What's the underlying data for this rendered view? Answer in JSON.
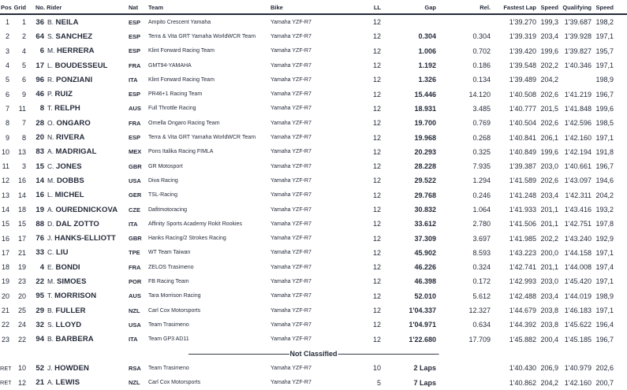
{
  "results": {
    "header": {
      "pos": "Pos",
      "grid": "Grid",
      "no_rider": "No. Rider",
      "nat": "Nat",
      "team": "Team",
      "bike": "Bike",
      "ll": "LL",
      "gap": "Gap",
      "rel": "Rel.",
      "fastest_lap": "Fastest Lap",
      "speed": "Speed",
      "qualifying": "Qualifying",
      "speed2": "Speed"
    },
    "rows": [
      {
        "pos": "1",
        "grid": "1",
        "no": "36",
        "initial": "B.",
        "name": "NEILA",
        "nat": "ESP",
        "team": "Ampito Crescent Yamaha",
        "bike": "Yamaha YZF-R7",
        "ll": "12",
        "gap": "",
        "rel": "",
        "fl": "1'39.270",
        "spd": "199,3",
        "qual": "1'39.687",
        "qspd": "198,2"
      },
      {
        "pos": "2",
        "grid": "2",
        "no": "64",
        "initial": "S.",
        "name": "SANCHEZ",
        "nat": "ESP",
        "team": "Terra & Vita GRT Yamaha WorldWCR Team",
        "bike": "Yamaha YZF-R7",
        "ll": "12",
        "gap": "0.304",
        "rel": "0.304",
        "fl": "1'39.319",
        "spd": "203,4",
        "qual": "1'39.928",
        "qspd": "197,1"
      },
      {
        "pos": "3",
        "grid": "4",
        "no": "6",
        "initial": "M.",
        "name": "HERRERA",
        "nat": "ESP",
        "team": "Klint Forward Racing Team",
        "bike": "Yamaha YZF-R7",
        "ll": "12",
        "gap": "1.006",
        "rel": "0.702",
        "fl": "1'39.420",
        "spd": "199,6",
        "qual": "1'39.827",
        "qspd": "195,7"
      },
      {
        "pos": "4",
        "grid": "5",
        "no": "17",
        "initial": "L.",
        "name": "BOUDESSEUL",
        "nat": "FRA",
        "team": "GMT94-YAMAHA",
        "bike": "Yamaha YZF-R7",
        "ll": "12",
        "gap": "1.192",
        "rel": "0.186",
        "fl": "1'39.548",
        "spd": "202,2",
        "qual": "1'40.346",
        "qspd": "197,1"
      },
      {
        "pos": "5",
        "grid": "6",
        "no": "96",
        "initial": "R.",
        "name": "PONZIANI",
        "nat": "ITA",
        "team": "Klint Forward Racing Team",
        "bike": "Yamaha YZF-R7",
        "ll": "12",
        "gap": "1.326",
        "rel": "0.134",
        "fl": "1'39.489",
        "spd": "204,2",
        "qual": "",
        "qspd": "198,9"
      },
      {
        "pos": "6",
        "grid": "9",
        "no": "46",
        "initial": "P.",
        "name": "RUIZ",
        "nat": "ESP",
        "team": "PR46+1 Racing Team",
        "bike": "Yamaha YZF-R7",
        "ll": "12",
        "gap": "15.446",
        "rel": "14.120",
        "fl": "1'40.508",
        "spd": "202,6",
        "qual": "1'41.219",
        "qspd": "196,7"
      },
      {
        "pos": "7",
        "grid": "11",
        "no": "8",
        "initial": "T.",
        "name": "RELPH",
        "nat": "AUS",
        "team": "Full Throttle Racing",
        "bike": "Yamaha YZF-R7",
        "ll": "12",
        "gap": "18.931",
        "rel": "3.485",
        "fl": "1'40.777",
        "spd": "201,5",
        "qual": "1'41.848",
        "qspd": "199,6"
      },
      {
        "pos": "8",
        "grid": "7",
        "no": "28",
        "initial": "O.",
        "name": "ONGARO",
        "nat": "FRA",
        "team": "Ornella Ongaro Racing Team",
        "bike": "Yamaha YZF-R7",
        "ll": "12",
        "gap": "19.700",
        "rel": "0.769",
        "fl": "1'40.504",
        "spd": "202,6",
        "qual": "1'42.596",
        "qspd": "198,5"
      },
      {
        "pos": "9",
        "grid": "8",
        "no": "20",
        "initial": "N.",
        "name": "RIVERA",
        "nat": "ESP",
        "team": "Terra & Vita GRT Yamaha WorldWCR Team",
        "bike": "Yamaha YZF-R7",
        "ll": "12",
        "gap": "19.968",
        "rel": "0.268",
        "fl": "1'40.841",
        "spd": "206,1",
        "qual": "1'42.160",
        "qspd": "197,1"
      },
      {
        "pos": "10",
        "grid": "13",
        "no": "83",
        "initial": "A.",
        "name": "MADRIGAL",
        "nat": "MEX",
        "team": "Pons Italika Racing FIMLA",
        "bike": "Yamaha YZF-R7",
        "ll": "12",
        "gap": "20.293",
        "rel": "0.325",
        "fl": "1'40.849",
        "spd": "199,6",
        "qual": "1'42.194",
        "qspd": "191,8"
      },
      {
        "pos": "11",
        "grid": "3",
        "no": "15",
        "initial": "C.",
        "name": "JONES",
        "nat": "GBR",
        "team": "GR Motosport",
        "bike": "Yamaha YZF-R7",
        "ll": "12",
        "gap": "28.228",
        "rel": "7.935",
        "fl": "1'39.387",
        "spd": "203,0",
        "qual": "1'40.661",
        "qspd": "196,7"
      },
      {
        "pos": "12",
        "grid": "16",
        "no": "14",
        "initial": "M.",
        "name": "DOBBS",
        "nat": "USA",
        "team": "Diva Racing",
        "bike": "Yamaha YZF-R7",
        "ll": "12",
        "gap": "29.522",
        "rel": "1.294",
        "fl": "1'41.589",
        "spd": "202,6",
        "qual": "1'43.097",
        "qspd": "194,6"
      },
      {
        "pos": "13",
        "grid": "14",
        "no": "16",
        "initial": "L.",
        "name": "MICHEL",
        "nat": "GER",
        "team": "TSL-Racing",
        "bike": "Yamaha YZF-R7",
        "ll": "12",
        "gap": "29.768",
        "rel": "0.246",
        "fl": "1'41.248",
        "spd": "203,4",
        "qual": "1'42.311",
        "qspd": "204,2"
      },
      {
        "pos": "14",
        "grid": "18",
        "no": "19",
        "initial": "A.",
        "name": "OUREDNICKOVA",
        "nat": "CZE",
        "team": "Dafitmotoracing",
        "bike": "Yamaha YZF-R7",
        "ll": "12",
        "gap": "30.832",
        "rel": "1.064",
        "fl": "1'41.933",
        "spd": "201,1",
        "qual": "1'43.416",
        "qspd": "193,2"
      },
      {
        "pos": "15",
        "grid": "15",
        "no": "88",
        "initial": "D.",
        "name": "DAL ZOTTO",
        "nat": "ITA",
        "team": "Affinity Sports Academy Rokit Rookies",
        "bike": "Yamaha YZF-R7",
        "ll": "12",
        "gap": "33.612",
        "rel": "2.780",
        "fl": "1'41.506",
        "spd": "201,1",
        "qual": "1'42.751",
        "qspd": "197,8"
      },
      {
        "pos": "16",
        "grid": "17",
        "no": "76",
        "initial": "J.",
        "name": "HANKS-ELLIOTT",
        "nat": "GBR",
        "team": "Hanks Racing/2 Strokes Racing",
        "bike": "Yamaha YZF-R7",
        "ll": "12",
        "gap": "37.309",
        "rel": "3.697",
        "fl": "1'41.985",
        "spd": "202,2",
        "qual": "1'43.240",
        "qspd": "192,9"
      },
      {
        "pos": "17",
        "grid": "21",
        "no": "33",
        "initial": "C.",
        "name": "LIU",
        "nat": "TPE",
        "team": "WT Team Taiwan",
        "bike": "Yamaha YZF-R7",
        "ll": "12",
        "gap": "45.902",
        "rel": "8.593",
        "fl": "1'43.223",
        "spd": "200,0",
        "qual": "1'44.158",
        "qspd": "197,1"
      },
      {
        "pos": "18",
        "grid": "19",
        "no": "4",
        "initial": "E.",
        "name": "BONDI",
        "nat": "FRA",
        "team": "ZELOS Trasimeno",
        "bike": "Yamaha YZF-R7",
        "ll": "12",
        "gap": "46.226",
        "rel": "0.324",
        "fl": "1'42.741",
        "spd": "201,1",
        "qual": "1'44.008",
        "qspd": "197,4"
      },
      {
        "pos": "19",
        "grid": "23",
        "no": "22",
        "initial": "M.",
        "name": "SIMOES",
        "nat": "POR",
        "team": "FB Racing Team",
        "bike": "Yamaha YZF-R7",
        "ll": "12",
        "gap": "46.398",
        "rel": "0.172",
        "fl": "1'42.993",
        "spd": "203,0",
        "qual": "1'45.420",
        "qspd": "197,1"
      },
      {
        "pos": "20",
        "grid": "20",
        "no": "95",
        "initial": "T.",
        "name": "MORRISON",
        "nat": "AUS",
        "team": "Tara Morrison Racing",
        "bike": "Yamaha YZF-R7",
        "ll": "12",
        "gap": "52.010",
        "rel": "5.612",
        "fl": "1'42.488",
        "spd": "203,4",
        "qual": "1'44.019",
        "qspd": "198,9"
      },
      {
        "pos": "21",
        "grid": "25",
        "no": "29",
        "initial": "B.",
        "name": "FULLER",
        "nat": "NZL",
        "team": "Carl Cox Motorsports",
        "bike": "Yamaha YZF-R7",
        "ll": "12",
        "gap": "1'04.337",
        "rel": "12.327",
        "fl": "1'44.679",
        "spd": "203,8",
        "qual": "1'46.183",
        "qspd": "197,1"
      },
      {
        "pos": "22",
        "grid": "24",
        "no": "32",
        "initial": "S.",
        "name": "LLOYD",
        "nat": "USA",
        "team": "Team Trasimeno",
        "bike": "Yamaha YZF-R7",
        "ll": "12",
        "gap": "1'04.971",
        "rel": "0.634",
        "fl": "1'44.392",
        "spd": "203,8",
        "qual": "1'45.622",
        "qspd": "196,4"
      },
      {
        "pos": "23",
        "grid": "22",
        "no": "94",
        "initial": "B.",
        "name": "BARBERA",
        "nat": "ITA",
        "team": "Team GP3 AD11",
        "bike": "Yamaha YZF-R7",
        "ll": "12",
        "gap": "1'22.680",
        "rel": "17.709",
        "fl": "1'45.882",
        "spd": "200,4",
        "qual": "1'45.185",
        "qspd": "196,7"
      }
    ],
    "not_classified": {
      "dashes": "———————————————",
      "label": "Not Classified"
    },
    "ret_rows": [
      {
        "pos": "RET",
        "grid": "10",
        "no": "52",
        "initial": "J.",
        "name": "HOWDEN",
        "nat": "RSA",
        "team": "Team Trasimeno",
        "bike": "Yamaha YZF-R7",
        "ll": "10",
        "gap": "2 Laps",
        "rel": "",
        "fl": "1'40.430",
        "spd": "206,9",
        "qual": "1'40.979",
        "qspd": "202,6"
      },
      {
        "pos": "RET",
        "grid": "12",
        "no": "21",
        "initial": "A.",
        "name": "LEWIS",
        "nat": "NZL",
        "team": "Carl Cox Motorsports",
        "bike": "Yamaha YZF-R7",
        "ll": "5",
        "gap": "7 Laps",
        "rel": "",
        "fl": "1'40.862",
        "spd": "204,2",
        "qual": "1'42.160",
        "qspd": "200,7"
      }
    ],
    "ink_color": "#242b3a"
  }
}
